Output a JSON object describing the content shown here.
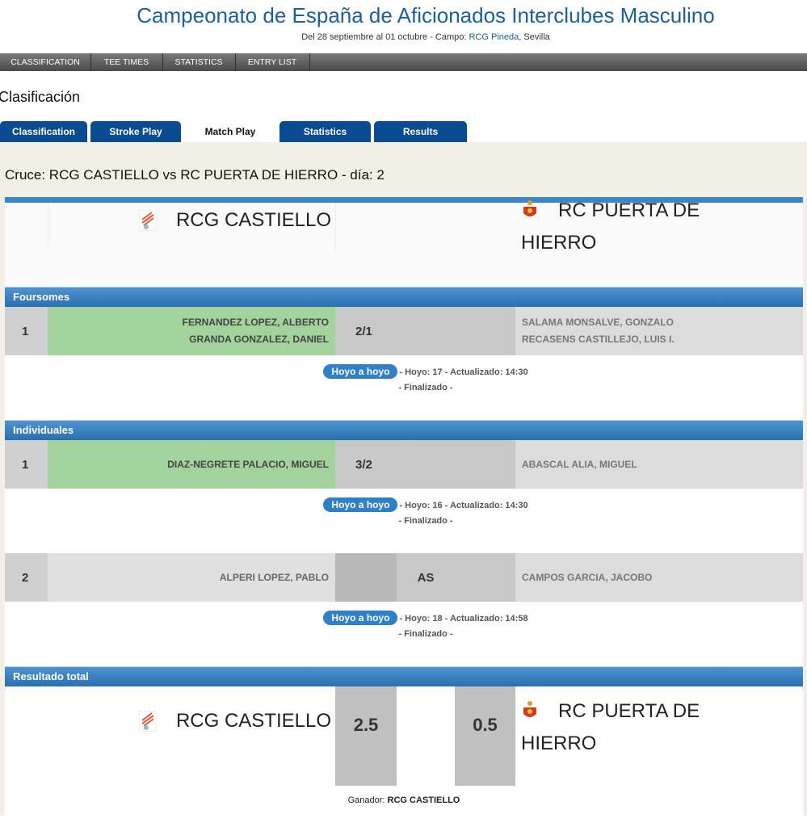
{
  "header": {
    "title": "Campeonato de España de Aficionados Interclubes Masculino",
    "subtitle_prefix": "Del 28 septiembre al 01 octubre - Campo: ",
    "venue": "RCG Pineda",
    "subtitle_suffix": ", Sevilla"
  },
  "nav": [
    "CLASSIFICATION",
    "TEE TIMES",
    "STATISTICS",
    "ENTRY LIST"
  ],
  "section_title": "Clasificación",
  "tabs": [
    "Classification",
    "Stroke Play",
    "Match Play",
    "Statistics",
    "Results"
  ],
  "active_tab": 2,
  "match_title": "Cruce: RCG CASTIELLO vs RC PUERTA DE HIERRO - día: 2",
  "teams": {
    "home": "RCG CASTIELLO",
    "away": "RC PUERTA DE HIERRO"
  },
  "sections": [
    {
      "title": "Foursomes",
      "matches": [
        {
          "number": 1,
          "home": [
            "FERNANDEZ LOPEZ, ALBERTO",
            "GRANDA GONZALEZ, DANIEL"
          ],
          "result": "2/1",
          "away": [
            "SALAMA MONSALVE, GONZALO",
            "RECASENS CASTILLEJO, LUIS I."
          ],
          "winner": "home",
          "link": "Hoyo a hoyo",
          "info": "- Hoyo: 17 - Actualizado: 14:30",
          "state": "- Finalizado -"
        }
      ]
    },
    {
      "title": "Individuales",
      "matches": [
        {
          "number": 1,
          "home": [
            "DIAZ-NEGRETE PALACIO, MIGUEL"
          ],
          "result": "3/2",
          "away": [
            "ABASCAL ALIA, MIGUEL"
          ],
          "winner": "home",
          "link": "Hoyo a hoyo",
          "info": "- Hoyo: 16 - Actualizado: 14:30",
          "state": "- Finalizado -"
        },
        {
          "number": 2,
          "home": [
            "ALPERI LOPEZ, PABLO"
          ],
          "result": "AS",
          "away": [
            "CAMPOS GARCIA, JACOBO"
          ],
          "winner": "none",
          "link": "Hoyo a hoyo",
          "info": "- Hoyo: 18 - Actualizado: 14:58",
          "state": "- Finalizado -"
        }
      ]
    }
  ],
  "total": {
    "title": "Resultado total",
    "home_team": "RCG CASTIELLO",
    "home_score": 2.5,
    "away_score": 0.5,
    "away_team": "RC PUERTA DE HIERRO",
    "winner_label": "Ganador: ",
    "winner": "RCG CASTIELLO"
  }
}
